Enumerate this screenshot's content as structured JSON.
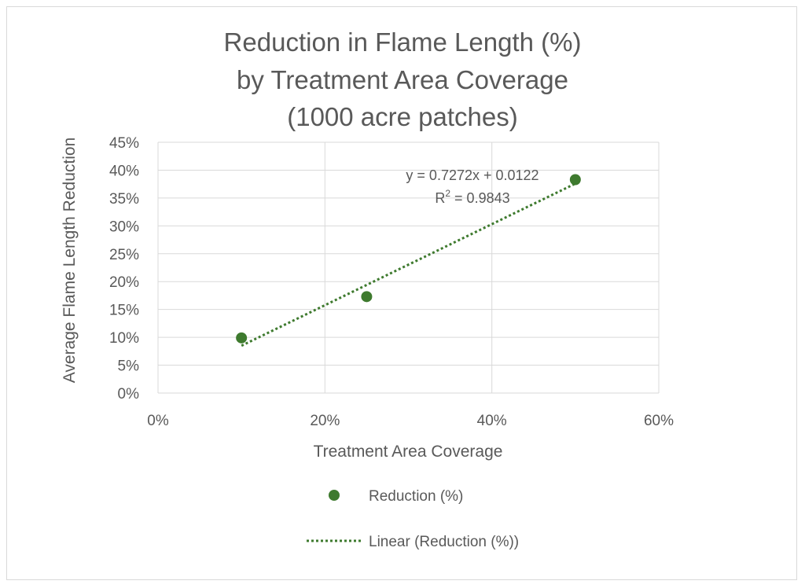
{
  "chart_data": {
    "type": "scatter",
    "title_lines": [
      "Reduction in Flame Length (%)",
      "by Treatment Area Coverage",
      "(1000 acre patches)"
    ],
    "xlabel": "Treatment Area Coverage",
    "ylabel": "Average Flame Length Reduction",
    "xlim": [
      0,
      0.6
    ],
    "ylim": [
      0,
      0.45
    ],
    "x_ticks": [
      0,
      0.2,
      0.4,
      0.6
    ],
    "x_tick_labels": [
      "0%",
      "20%",
      "40%",
      "60%"
    ],
    "y_ticks": [
      0,
      0.05,
      0.1,
      0.15,
      0.2,
      0.25,
      0.3,
      0.35,
      0.4,
      0.45
    ],
    "y_tick_labels": [
      "0%",
      "5%",
      "10%",
      "15%",
      "20%",
      "25%",
      "30%",
      "35%",
      "40%",
      "45%"
    ],
    "grid": true,
    "legend_position": "bottom",
    "series": [
      {
        "name": "Reduction (%)",
        "color": "#3e7a2e",
        "points": [
          {
            "x": 0.1,
            "y": 0.099
          },
          {
            "x": 0.25,
            "y": 0.173
          },
          {
            "x": 0.5,
            "y": 0.383
          }
        ]
      }
    ],
    "trendline": {
      "name": "Linear (Reduction (%))",
      "type": "linear",
      "slope": 0.7272,
      "intercept": 0.0122,
      "x_range": [
        0.1,
        0.5
      ],
      "color": "#3e7a2e",
      "equation_text": "y = 0.7272x + 0.0122",
      "r2_prefix": "R",
      "r2_sup": "2",
      "r2_value": " = 0.9843"
    }
  }
}
